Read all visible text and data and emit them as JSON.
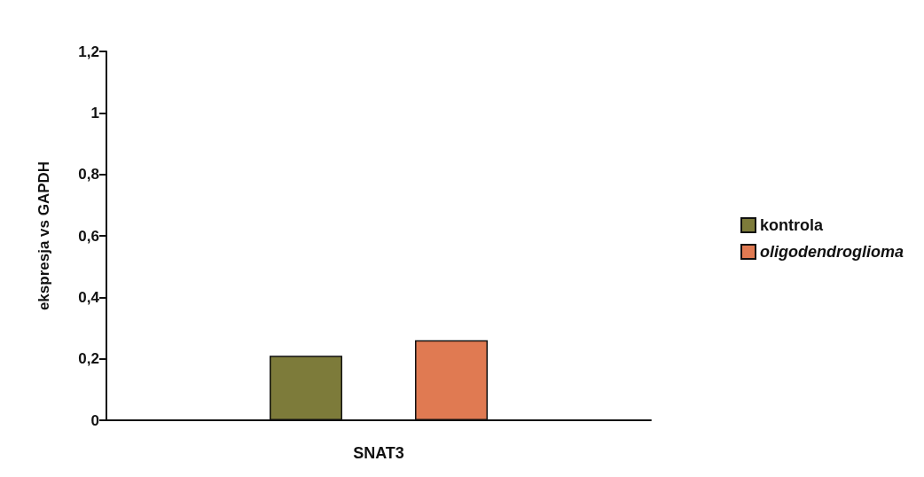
{
  "chart_data": {
    "type": "bar",
    "ylabel": "ekspresja vs GAPDH",
    "categories": [
      "SNAT3"
    ],
    "series": [
      {
        "name": "kontrola",
        "color": "#7d7b3a",
        "values": [
          0.21
        ]
      },
      {
        "name": "oligodendroglioma",
        "color": "#e07a52",
        "values": [
          0.26
        ]
      }
    ],
    "ylim": [
      0,
      1.2
    ],
    "yticks": [
      0,
      {
        "value": 0.2,
        "label": "0,2"
      },
      {
        "value": 0.4,
        "label": "0,4"
      },
      {
        "value": 0.6,
        "label": "0,6"
      },
      {
        "value": 0.8,
        "label": "0,8"
      },
      1,
      {
        "value": 1.2,
        "label": "1,2"
      }
    ],
    "grid": false,
    "legend": "right"
  }
}
